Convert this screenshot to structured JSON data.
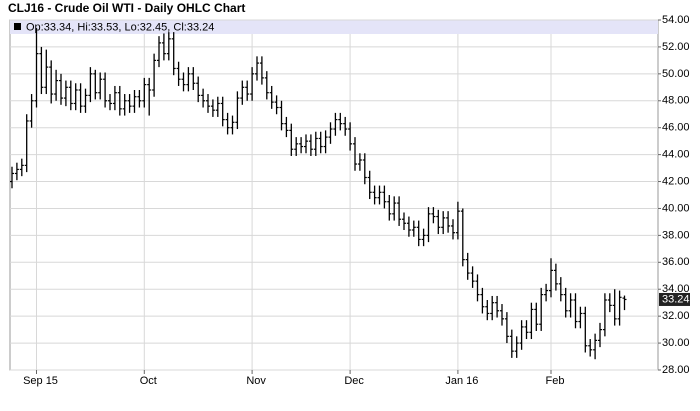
{
  "chart_data": {
    "type": "ohlc",
    "title": "CLJ16 - Crude Oil WTI - Daily OHLC Chart",
    "legend_text": "Op:33.34, Hi:33.53, Lo:32.45, Cl:33.24",
    "color": "#000000",
    "grid": true,
    "ylim": [
      28,
      54
    ],
    "yticks": [
      {
        "value": 28,
        "label": "28.00"
      },
      {
        "value": 30,
        "label": "30.00"
      },
      {
        "value": 32,
        "label": "32.00"
      },
      {
        "value": 34,
        "label": "34.00"
      },
      {
        "value": 36,
        "label": "36.00"
      },
      {
        "value": 38,
        "label": "38.00"
      },
      {
        "value": 40,
        "label": "40.00"
      },
      {
        "value": 42,
        "label": "42.00"
      },
      {
        "value": 44,
        "label": "44.00"
      },
      {
        "value": 46,
        "label": "46.00"
      },
      {
        "value": 48,
        "label": "48.00"
      },
      {
        "value": 50,
        "label": "50.00"
      },
      {
        "value": 52,
        "label": "52.00"
      },
      {
        "value": 54,
        "label": "54.00"
      }
    ],
    "categories": [
      null,
      null,
      null,
      null,
      null,
      "Sep 15",
      null,
      null,
      null,
      null,
      null,
      null,
      null,
      null,
      null,
      null,
      null,
      null,
      null,
      null,
      null,
      null,
      null,
      null,
      null,
      null,
      null,
      "Oct",
      null,
      null,
      null,
      null,
      null,
      null,
      null,
      null,
      null,
      null,
      null,
      null,
      null,
      null,
      null,
      null,
      null,
      null,
      null,
      null,
      null,
      "Nov",
      null,
      null,
      null,
      null,
      null,
      null,
      null,
      null,
      null,
      null,
      null,
      null,
      null,
      null,
      null,
      null,
      null,
      null,
      null,
      "Dec",
      null,
      null,
      null,
      null,
      null,
      null,
      null,
      null,
      null,
      null,
      null,
      null,
      null,
      null,
      null,
      null,
      null,
      null,
      null,
      null,
      null,
      "Jan 16",
      null,
      null,
      null,
      null,
      null,
      null,
      null,
      null,
      null,
      null,
      null,
      null,
      null,
      null,
      null,
      null,
      null,
      null,
      "Feb",
      null,
      null,
      null,
      null,
      null,
      null,
      null,
      null,
      null,
      null,
      null,
      null,
      null,
      null,
      null
    ],
    "open": [
      42.0,
      42.6,
      42.9,
      43.2,
      46.5,
      48.0,
      51.5,
      49.0,
      50.5,
      48.5,
      49.5,
      48.2,
      49.0,
      47.8,
      48.8,
      47.6,
      48.4,
      50.0,
      48.6,
      49.6,
      48.0,
      47.8,
      48.6,
      47.4,
      48.0,
      47.6,
      48.3,
      48.0,
      49.2,
      48.8,
      51.0,
      52.3,
      51.5,
      52.6,
      50.4,
      49.6,
      49.2,
      50.0,
      49.3,
      48.4,
      48.0,
      47.6,
      47.3,
      47.8,
      46.6,
      46.0,
      46.4,
      48.2,
      49.0,
      48.5,
      50.0,
      50.8,
      49.7,
      48.6,
      47.9,
      47.5,
      46.3,
      45.8,
      44.4,
      44.8,
      44.6,
      45.0,
      44.4,
      45.2,
      44.6,
      45.3,
      45.9,
      46.6,
      46.3,
      45.9,
      44.8,
      43.3,
      43.6,
      42.3,
      41.2,
      40.8,
      41.2,
      40.5,
      39.6,
      40.4,
      39.2,
      38.9,
      38.4,
      38.6,
      37.7,
      38.0,
      39.6,
      39.4,
      38.6,
      39.3,
      38.7,
      38.2,
      39.8,
      36.2,
      35.2,
      34.6,
      33.6,
      32.7,
      32.2,
      33.0,
      32.4,
      31.8,
      30.5,
      29.4,
      30.0,
      31.2,
      30.8,
      32.5,
      31.4,
      33.6,
      33.9,
      35.4,
      34.4,
      33.6,
      32.4,
      33.2,
      31.6,
      32.2,
      29.8,
      29.5,
      30.2,
      31.0,
      33.2,
      32.8,
      31.8,
      33.34
    ],
    "high": [
      43.1,
      43.4,
      43.7,
      47.0,
      48.5,
      53.4,
      52.0,
      51.8,
      51.0,
      50.3,
      50.0,
      49.5,
      49.5,
      49.3,
      49.3,
      48.9,
      50.5,
      50.3,
      50.1,
      50.1,
      48.5,
      49.1,
      49.1,
      48.5,
      48.5,
      48.8,
      48.8,
      49.7,
      49.7,
      51.5,
      52.8,
      53.0,
      53.1,
      53.1,
      50.9,
      50.1,
      50.5,
      50.5,
      49.8,
      48.9,
      48.5,
      48.1,
      48.3,
      48.3,
      47.1,
      46.9,
      48.7,
      49.5,
      49.5,
      50.5,
      51.3,
      51.3,
      50.2,
      49.1,
      48.4,
      48.0,
      46.8,
      46.3,
      45.3,
      45.3,
      45.5,
      45.5,
      45.7,
      45.7,
      45.8,
      46.4,
      47.1,
      47.1,
      46.8,
      46.4,
      45.3,
      44.1,
      44.1,
      42.8,
      41.7,
      41.7,
      41.7,
      41.0,
      40.9,
      40.9,
      39.7,
      39.4,
      39.1,
      39.1,
      38.5,
      40.1,
      40.1,
      39.9,
      39.8,
      39.8,
      39.2,
      40.5,
      40.0,
      36.7,
      35.7,
      35.1,
      34.1,
      33.2,
      33.5,
      33.5,
      32.9,
      32.3,
      31.0,
      30.5,
      31.7,
      31.7,
      33.0,
      33.0,
      34.1,
      34.4,
      36.3,
      35.9,
      34.9,
      34.1,
      33.7,
      33.7,
      32.7,
      32.7,
      30.3,
      30.7,
      31.5,
      33.7,
      33.7,
      34.0,
      33.9,
      33.53
    ],
    "low": [
      41.5,
      42.1,
      42.4,
      42.7,
      46.0,
      47.5,
      48.5,
      48.5,
      47.8,
      48.0,
      47.7,
      47.6,
      47.3,
      47.3,
      47.1,
      47.1,
      47.9,
      48.1,
      48.1,
      47.5,
      47.3,
      47.3,
      46.9,
      46.9,
      47.1,
      47.1,
      47.5,
      47.5,
      46.9,
      48.3,
      50.5,
      51.0,
      51.0,
      49.9,
      49.1,
      48.7,
      48.7,
      48.8,
      47.9,
      47.5,
      47.1,
      46.8,
      46.8,
      46.1,
      45.5,
      45.5,
      45.9,
      47.7,
      48.0,
      48.0,
      49.5,
      49.2,
      48.1,
      47.4,
      47.0,
      45.8,
      45.3,
      43.9,
      43.9,
      44.1,
      44.1,
      43.9,
      43.9,
      44.1,
      44.1,
      44.8,
      45.4,
      45.8,
      45.4,
      44.3,
      42.8,
      42.8,
      41.8,
      40.7,
      40.3,
      40.3,
      40.0,
      39.1,
      39.1,
      38.7,
      38.4,
      37.9,
      37.9,
      37.2,
      37.2,
      37.5,
      38.9,
      38.1,
      38.1,
      38.2,
      37.7,
      37.7,
      35.7,
      34.7,
      34.1,
      33.1,
      32.2,
      31.7,
      31.7,
      31.9,
      31.3,
      30.0,
      28.9,
      28.9,
      29.5,
      30.3,
      30.3,
      30.9,
      30.9,
      33.1,
      33.4,
      33.9,
      33.1,
      31.9,
      31.9,
      31.1,
      31.1,
      29.3,
      29.0,
      28.8,
      29.7,
      30.5,
      32.3,
      31.3,
      31.3,
      32.45
    ],
    "close": [
      42.6,
      42.9,
      43.2,
      46.5,
      48.0,
      51.5,
      49.0,
      50.5,
      48.5,
      49.5,
      48.2,
      49.0,
      47.8,
      48.8,
      47.6,
      48.4,
      50.0,
      48.6,
      49.6,
      48.0,
      47.8,
      48.6,
      47.4,
      48.0,
      47.6,
      48.3,
      48.0,
      49.2,
      48.8,
      51.0,
      52.3,
      51.5,
      52.6,
      50.4,
      49.6,
      49.2,
      50.0,
      49.3,
      48.4,
      48.0,
      47.6,
      47.3,
      47.8,
      46.6,
      46.0,
      46.4,
      48.2,
      49.0,
      48.5,
      50.0,
      50.8,
      49.7,
      48.6,
      47.9,
      47.5,
      46.3,
      45.8,
      44.4,
      44.8,
      44.6,
      45.0,
      44.4,
      45.2,
      44.6,
      45.3,
      45.9,
      46.6,
      46.3,
      45.9,
      44.8,
      43.3,
      43.6,
      42.3,
      41.2,
      40.8,
      41.2,
      40.5,
      39.6,
      40.4,
      39.2,
      38.9,
      38.4,
      38.6,
      37.7,
      38.0,
      39.6,
      39.4,
      38.6,
      39.3,
      38.7,
      38.2,
      39.8,
      36.2,
      35.2,
      34.6,
      33.6,
      32.7,
      32.2,
      33.0,
      32.4,
      31.8,
      30.5,
      29.4,
      30.0,
      31.2,
      30.8,
      32.5,
      31.4,
      33.6,
      33.9,
      35.4,
      34.4,
      33.6,
      32.4,
      33.2,
      31.6,
      32.2,
      29.8,
      29.5,
      30.2,
      31.0,
      33.2,
      32.8,
      31.8,
      33.4,
      33.24
    ]
  }
}
